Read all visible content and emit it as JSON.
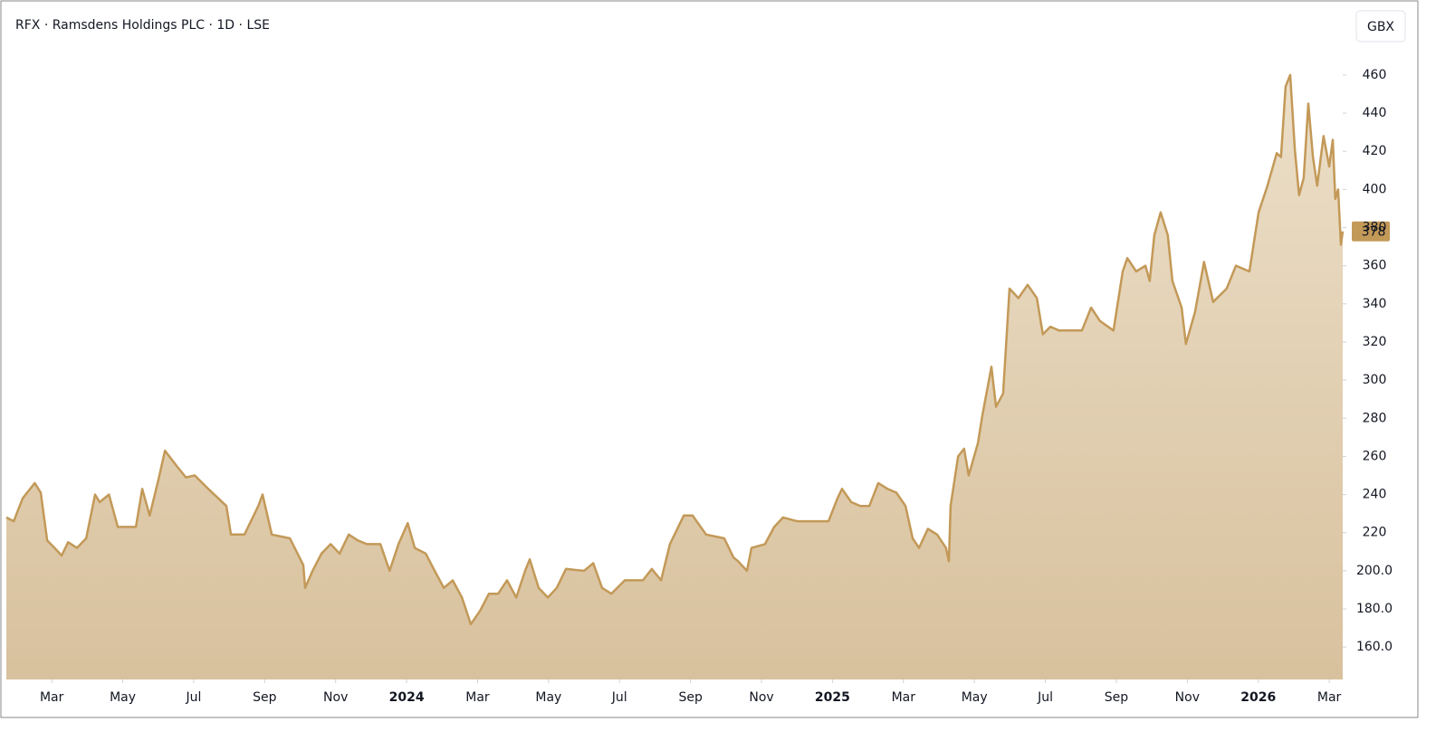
{
  "chart_data": {
    "type": "area",
    "title": "RFX · Ramsdens Holdings PLC · 1D · LSE",
    "currency": "GBX",
    "color": "#c39958",
    "x": [
      0.72,
      0.93,
      1.18,
      1.52,
      1.69,
      1.87,
      2.08,
      2.28,
      2.46,
      2.71,
      2.97,
      3.22,
      3.35,
      3.61,
      3.86,
      4.37,
      4.55,
      4.76,
      5.01,
      5.19,
      5.52,
      5.78,
      6.03,
      6.41,
      6.92,
      7.05,
      7.43,
      7.82,
      7.94,
      8.2,
      8.71,
      9.09,
      9.14,
      9.35,
      9.6,
      9.86,
      10.11,
      10.37,
      10.62,
      10.88,
      11.26,
      11.52,
      11.77,
      12.03,
      12.23,
      12.54,
      12.79,
      13.05,
      13.3,
      13.56,
      13.81,
      14.07,
      14.32,
      14.58,
      14.83,
      15.09,
      15.34,
      15.47,
      15.72,
      15.98,
      16.23,
      16.49,
      17.0,
      17.26,
      17.51,
      17.77,
      18.15,
      18.66,
      18.91,
      19.17,
      19.42,
      19.81,
      20.06,
      20.44,
      20.95,
      21.21,
      21.34,
      21.59,
      21.72,
      22.1,
      22.36,
      22.61,
      23.0,
      23.51,
      23.89,
      24.14,
      24.27,
      24.53,
      24.78,
      25.04,
      25.29,
      25.55,
      25.8,
      26.06,
      26.26,
      26.44,
      26.69,
      26.95,
      27.2,
      27.28,
      27.33,
      27.54,
      27.71,
      27.84,
      28.1,
      28.22,
      28.48,
      28.61,
      28.81,
      28.99,
      29.24,
      29.5,
      29.76,
      29.93,
      30.14,
      30.39,
      31.03,
      31.29,
      31.54,
      31.92,
      32.18,
      32.31,
      32.56,
      32.82,
      32.94,
      33.07,
      33.25,
      33.45,
      33.58,
      33.71,
      33.84,
      33.96,
      34.22,
      34.47,
      34.73,
      35.11,
      35.37,
      35.75,
      36.01,
      36.26,
      36.52,
      36.64,
      36.77,
      36.9,
      37.03,
      37.15,
      37.28,
      37.41,
      37.54,
      37.66,
      37.84,
      38.0,
      38.1,
      38.17,
      38.25,
      38.33,
      38.38
    ],
    "values": [
      228,
      226,
      238,
      246,
      241,
      216,
      212,
      208,
      215,
      212,
      217,
      240,
      236,
      240,
      223,
      223,
      243,
      229,
      248,
      263,
      255,
      249,
      250,
      243,
      234,
      219,
      219,
      234,
      240,
      219,
      217,
      203,
      191,
      200,
      209,
      214,
      209,
      219,
      216,
      214,
      214,
      200,
      214,
      225,
      212,
      209,
      200,
      191,
      195,
      186,
      172,
      179,
      188,
      188,
      195,
      186,
      200,
      206,
      191,
      186,
      191,
      201,
      200,
      204,
      191,
      188,
      195,
      195,
      201,
      195,
      214,
      229,
      229,
      219,
      217,
      207,
      205,
      200,
      212,
      214,
      223,
      228,
      226,
      226,
      226,
      238,
      243,
      236,
      234,
      234,
      246,
      243,
      241,
      234,
      217,
      212,
      222,
      219,
      212,
      205,
      234,
      260,
      264,
      250,
      267,
      281,
      307,
      286,
      293,
      348,
      343,
      350,
      343,
      324,
      328,
      326,
      326,
      338,
      331,
      326,
      357,
      364,
      357,
      360,
      352,
      376,
      388,
      376,
      352,
      345,
      338,
      319,
      336,
      362,
      341,
      348,
      360,
      357,
      388,
      402,
      419,
      417,
      454,
      460,
      421,
      397,
      406,
      445,
      417,
      402,
      428,
      412,
      426,
      395,
      400,
      371,
      378
    ],
    "xlim": [
      0.72,
      38.38
    ],
    "xticks": [
      {
        "value": 2,
        "label": "Mar"
      },
      {
        "value": 4,
        "label": "May"
      },
      {
        "value": 6,
        "label": "Jul"
      },
      {
        "value": 8,
        "label": "Sep"
      },
      {
        "value": 10,
        "label": "Nov"
      },
      {
        "value": 12,
        "label": "2024"
      },
      {
        "value": 14,
        "label": "Mar"
      },
      {
        "value": 16,
        "label": "May"
      },
      {
        "value": 18,
        "label": "Jul"
      },
      {
        "value": 20,
        "label": "Sep"
      },
      {
        "value": 22,
        "label": "Nov"
      },
      {
        "value": 24,
        "label": "2025"
      },
      {
        "value": 26,
        "label": "Mar"
      },
      {
        "value": 28,
        "label": "May"
      },
      {
        "value": 30,
        "label": "Jul"
      },
      {
        "value": 32,
        "label": "Sep"
      },
      {
        "value": 34,
        "label": "Nov"
      },
      {
        "value": 36,
        "label": "2026"
      },
      {
        "value": 38,
        "label": "Mar"
      }
    ],
    "ylim": [
      143,
      478
    ],
    "yticks": [
      {
        "value": 160,
        "label": "160.0"
      },
      {
        "value": 180,
        "label": "180.0"
      },
      {
        "value": 200,
        "label": "200.0"
      },
      220,
      240,
      260,
      280,
      300,
      320,
      340,
      360,
      380,
      400,
      420,
      440,
      460
    ],
    "grid": false
  }
}
